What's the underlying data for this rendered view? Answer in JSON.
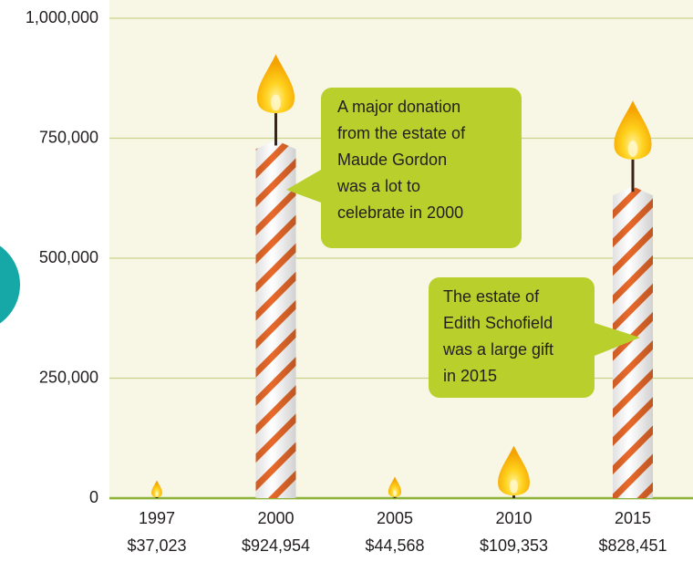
{
  "chart_data": {
    "type": "candle",
    "categories": [
      "1997",
      "2000",
      "2005",
      "2010",
      "2015"
    ],
    "values": [
      37023,
      924954,
      44568,
      109353,
      828451
    ],
    "value_labels": [
      "$37,023",
      "$924,954",
      "$44,568",
      "$109,353",
      "$828,451"
    ],
    "ylim": [
      0,
      1000000
    ],
    "yticks": [
      0,
      {
        "value": 250000,
        "label": "250,000"
      },
      {
        "value": 500000,
        "label": "500,000"
      },
      {
        "value": 750000,
        "label": "750,000"
      },
      {
        "value": 1000000,
        "label": "1,000,000"
      }
    ],
    "grid": true,
    "color": "#e8692a",
    "annotations": [
      {
        "category": 1,
        "lines": [
          "A major donation",
          "from the estate of",
          "Maude Gordon",
          "was a lot to",
          "celebrate in 2000"
        ]
      },
      {
        "category": 4,
        "lines": [
          "The estate of",
          "Edith Schofield",
          "was a large gift",
          "in 2015"
        ]
      }
    ]
  }
}
